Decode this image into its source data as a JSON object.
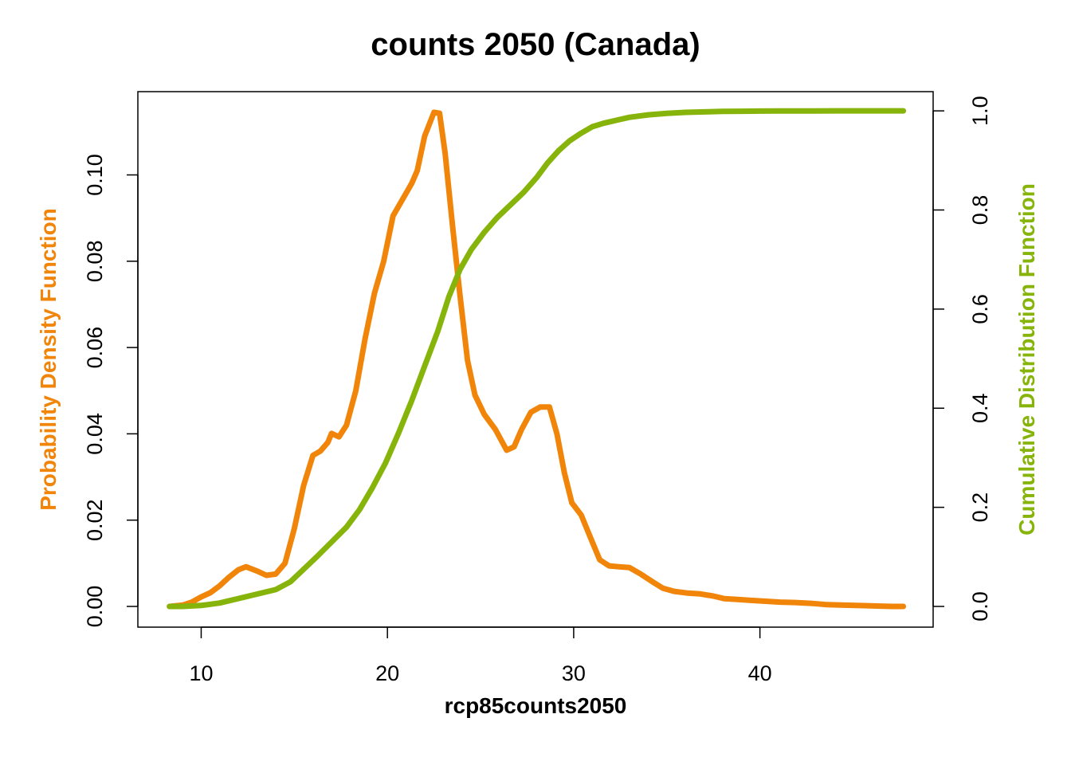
{
  "chart_data": {
    "type": "line",
    "title": "counts 2050 (Canada)",
    "xlabel": "rcp85counts2050",
    "ylabel_left": "Probability Density Function",
    "ylabel_right": "Cumulative Distribution Function",
    "xlim": [
      6.6,
      49.3
    ],
    "ylim_left": [
      -0.0048,
      0.1193
    ],
    "ylim_right": [
      -0.0418,
      1.0388
    ],
    "x_ticks": [
      "10",
      "20",
      "30",
      "40"
    ],
    "y_left_ticks": [
      "0.00",
      "0.02",
      "0.04",
      "0.06",
      "0.08",
      "0.10"
    ],
    "y_right_ticks": [
      "0.0",
      "0.2",
      "0.4",
      "0.6",
      "0.8",
      "1.0"
    ],
    "colors": {
      "pdf": "#F0850A",
      "cdf": "#87B40A"
    },
    "series": [
      {
        "name": "Probability Density Function",
        "axis": "left",
        "color": "#F0850A",
        "x": [
          8.3,
          9.0,
          9.5,
          10.0,
          10.5,
          11.0,
          11.5,
          12.0,
          12.4,
          13.0,
          13.5,
          14.0,
          14.5,
          15.0,
          15.5,
          16.0,
          16.4,
          16.8,
          17.0,
          17.4,
          17.8,
          18.3,
          18.8,
          19.3,
          19.8,
          20.3,
          20.9,
          21.3,
          21.6,
          22.0,
          22.5,
          22.8,
          23.1,
          23.5,
          23.9,
          24.3,
          24.7,
          25.2,
          25.8,
          26.4,
          26.8,
          27.2,
          27.7,
          28.2,
          28.7,
          29.1,
          29.5,
          29.9,
          30.4,
          30.9,
          31.4,
          31.9,
          32.4,
          33.0,
          33.6,
          34.2,
          34.8,
          35.4,
          36.1,
          36.8,
          37.5,
          38.1,
          38.8,
          39.5,
          40.3,
          41.1,
          41.9,
          42.8,
          43.6,
          44.5,
          45.4,
          46.3,
          47.1,
          47.7
        ],
        "values": [
          0.0,
          0.0003,
          0.001,
          0.0022,
          0.0032,
          0.0048,
          0.0068,
          0.0085,
          0.0092,
          0.0082,
          0.0072,
          0.0075,
          0.01,
          0.018,
          0.028,
          0.035,
          0.036,
          0.038,
          0.0401,
          0.0393,
          0.042,
          0.05,
          0.062,
          0.0725,
          0.08,
          0.0905,
          0.095,
          0.098,
          0.101,
          0.109,
          0.1145,
          0.1143,
          0.105,
          0.088,
          0.072,
          0.057,
          0.049,
          0.0445,
          0.041,
          0.0362,
          0.037,
          0.041,
          0.045,
          0.0462,
          0.0462,
          0.04,
          0.031,
          0.024,
          0.0212,
          0.016,
          0.0108,
          0.0094,
          0.0092,
          0.009,
          0.0075,
          0.0058,
          0.0042,
          0.0035,
          0.0031,
          0.0029,
          0.0024,
          0.0018,
          0.0016,
          0.0014,
          0.0012,
          0.001,
          0.0009,
          0.0007,
          0.0004,
          0.0003,
          0.0002,
          0.0001,
          0.0,
          0.0
        ]
      },
      {
        "name": "Cumulative Distribution Function",
        "axis": "right",
        "color": "#87B40A",
        "x": [
          8.3,
          9.0,
          10.0,
          11.0,
          12.0,
          13.0,
          14.0,
          14.8,
          15.5,
          16.2,
          17.0,
          17.8,
          18.5,
          19.2,
          19.9,
          20.6,
          21.3,
          22.0,
          22.7,
          23.3,
          23.9,
          24.5,
          25.2,
          25.9,
          26.6,
          27.3,
          28.0,
          28.6,
          29.2,
          29.8,
          30.4,
          31.0,
          31.6,
          32.3,
          33.0,
          34.0,
          35.0,
          36.0,
          37.0,
          38.0,
          39.0,
          40.0,
          41.0,
          42.0,
          43.0,
          44.0,
          45.0,
          46.0,
          47.0,
          47.7
        ],
        "values": [
          0.0,
          0.0,
          0.002,
          0.007,
          0.016,
          0.025,
          0.034,
          0.05,
          0.075,
          0.1,
          0.13,
          0.16,
          0.195,
          0.24,
          0.29,
          0.35,
          0.415,
          0.485,
          0.555,
          0.625,
          0.68,
          0.72,
          0.755,
          0.785,
          0.81,
          0.835,
          0.865,
          0.895,
          0.92,
          0.94,
          0.955,
          0.968,
          0.975,
          0.981,
          0.987,
          0.992,
          0.995,
          0.997,
          0.998,
          0.999,
          0.9993,
          0.9995,
          0.9997,
          0.9998,
          0.9999,
          1.0,
          1.0,
          1.0,
          1.0,
          1.0
        ]
      }
    ]
  }
}
